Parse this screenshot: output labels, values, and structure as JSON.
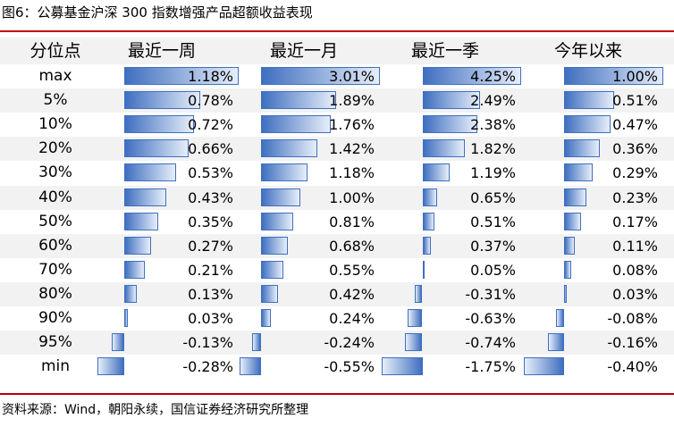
{
  "figure": {
    "title": "图6：公募基金沪深 300 指数增强产品超额收益表现",
    "source": "资料来源：Wind，朝阳永续，国信证券经济研究所整理"
  },
  "chart_data": {
    "type": "table",
    "row_header": "分位点",
    "columns": [
      "最近一周",
      "最近一月",
      "最近一季",
      "今年以来"
    ],
    "rows": [
      "max",
      "5%",
      "10%",
      "20%",
      "30%",
      "40%",
      "50%",
      "60%",
      "70%",
      "80%",
      "90%",
      "95%",
      "min"
    ],
    "unit": "%",
    "series": [
      {
        "name": "最近一周",
        "values": [
          1.18,
          0.78,
          0.72,
          0.66,
          0.53,
          0.43,
          0.35,
          0.27,
          0.21,
          0.13,
          0.03,
          -0.13,
          -0.28
        ]
      },
      {
        "name": "最近一月",
        "values": [
          3.01,
          1.89,
          1.76,
          1.42,
          1.18,
          1.0,
          0.81,
          0.68,
          0.55,
          0.42,
          0.24,
          -0.24,
          -0.55
        ]
      },
      {
        "name": "最近一季",
        "values": [
          4.25,
          2.49,
          2.38,
          1.82,
          1.19,
          0.65,
          0.51,
          0.37,
          0.05,
          -0.31,
          -0.63,
          -0.74,
          -1.75
        ]
      },
      {
        "name": "今年以来",
        "values": [
          1.0,
          0.51,
          0.47,
          0.36,
          0.29,
          0.23,
          0.17,
          0.11,
          0.08,
          0.03,
          -0.08,
          -0.16,
          -0.4
        ]
      }
    ],
    "bar_color": "#3f6fc0",
    "rule_color": "#c00000"
  }
}
